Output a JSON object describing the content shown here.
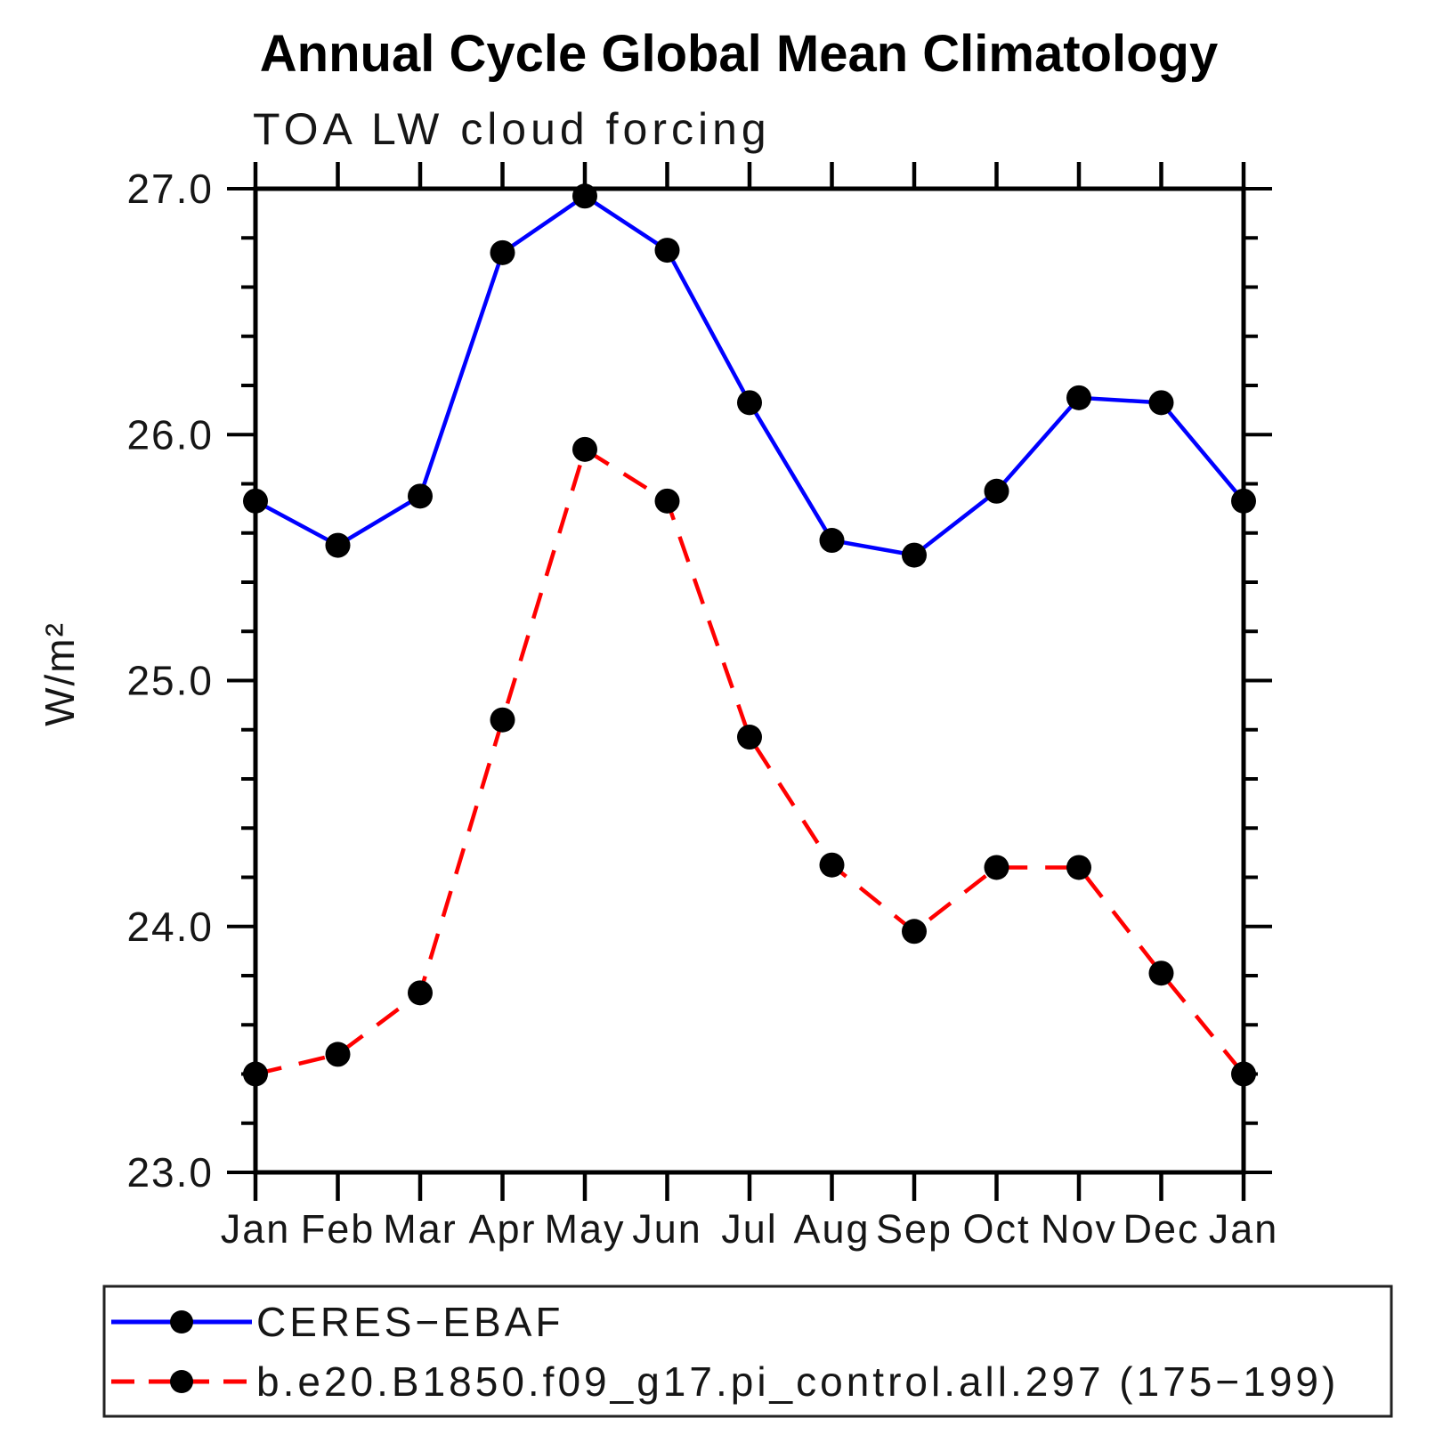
{
  "title": "Annual Cycle Global Mean Climatology",
  "subtitle": "TOA LW cloud forcing",
  "chart_data": {
    "type": "line",
    "x_categories": [
      "Jan",
      "Feb",
      "Mar",
      "Apr",
      "May",
      "Jun",
      "Jul",
      "Aug",
      "Sep",
      "Oct",
      "Nov",
      "Dec",
      "Jan"
    ],
    "ylabel": "W/m²",
    "ylim": [
      23.0,
      27.0
    ],
    "ytick_major_interval": 1.0,
    "ytick_minor_interval": 0.2,
    "ytick_labels": [
      "27.0",
      "26.0",
      "25.0",
      "24.0",
      "23.0"
    ],
    "grid": false,
    "legend_position": "bottom-left-box",
    "frame_color": "#000000",
    "series": [
      {
        "name": "CERES−EBAF",
        "color": "#0000ff",
        "line_style": "solid",
        "marker": "circle",
        "marker_color": "#000000",
        "values": [
          25.73,
          25.55,
          25.75,
          26.74,
          26.97,
          26.75,
          26.13,
          25.57,
          25.51,
          25.77,
          26.15,
          26.13,
          25.73
        ]
      },
      {
        "name": "b.e20.B1850.f09_g17.pi_control.all.297 (175−199)",
        "color": "#ff0000",
        "line_style": "dashed",
        "marker": "circle",
        "marker_color": "#000000",
        "values": [
          23.4,
          23.48,
          23.73,
          24.84,
          25.94,
          25.73,
          24.77,
          24.25,
          23.98,
          24.24,
          24.24,
          23.81,
          23.4
        ]
      }
    ]
  }
}
